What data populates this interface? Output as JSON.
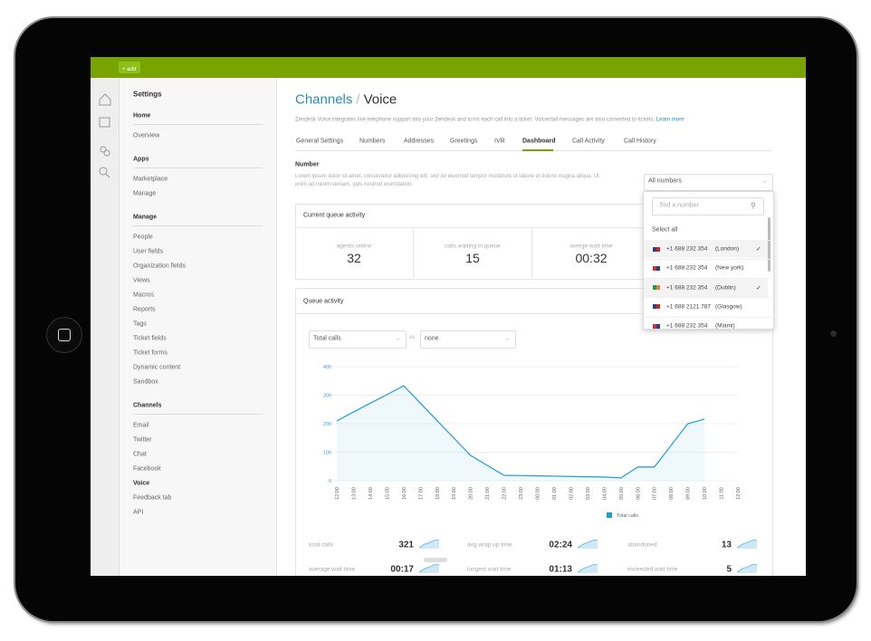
{
  "topbar": {
    "add_button": "+ add"
  },
  "sidebar": {
    "title": "Settings",
    "sections": [
      {
        "heading": "Home",
        "items": [
          "Overview"
        ]
      },
      {
        "heading": "Apps",
        "items": [
          "Marketplace",
          "Manage"
        ]
      },
      {
        "heading": "Manage",
        "items": [
          "People",
          "User fields",
          "Organization fields",
          "Views",
          "Macros",
          "Reports",
          "Tags",
          "Ticket fields",
          "Ticket forms",
          "Dynamic content",
          "Sandbox"
        ]
      },
      {
        "heading": "Channels",
        "items": [
          "Email",
          "Twitter",
          "Chat",
          "Facebook",
          "Voice",
          "Feedback tab",
          "API"
        ]
      }
    ]
  },
  "page": {
    "title": "Channels",
    "separator": "/",
    "subtitle": "Voice",
    "description": "Zendesk Voice integrates live telephone support into your Zendesk and turns each call into a ticket. Voicemail messages are also converted to tickets.",
    "learn_more": "Learn more",
    "tabs": [
      "General Settings",
      "Numbers",
      "Addresses",
      "Greetings",
      "IVR",
      "Dashboard",
      "Call Activity",
      "Call History"
    ]
  },
  "number_section": {
    "heading": "Number",
    "text": "Lorem ipsum dolor sit amet, consectetur adipisicing elit, sed do eiusmod tempor incididunt ut labore et dolore magna aliqua. Ut enim ad minim veniam, quis nostrud exercitation."
  },
  "dropdown": {
    "selected": "All numbers",
    "search_placeholder": "find a number",
    "select_all": "Select all",
    "options": [
      {
        "number": "+1 688 232 354",
        "city": "(London)",
        "checked": true
      },
      {
        "number": "+1 688 232 354",
        "city": "(New york)",
        "checked": false
      },
      {
        "number": "+1 688 232 354",
        "city": "(Dublin)",
        "checked": true
      },
      {
        "number": "+1 688 2121 787",
        "city": "(Glasgow)",
        "checked": false
      },
      {
        "number": "+1 688 232 354",
        "city": "(Miami)",
        "checked": false
      }
    ]
  },
  "current_queue": {
    "title": "Current queue activity",
    "stats": [
      {
        "label": "agents online",
        "value": 32
      },
      {
        "label": "calls waiting in queue",
        "value": 15
      },
      {
        "label": "averge wait time",
        "value": "00:32"
      }
    ]
  },
  "queue_activity": {
    "title": "Queue activity",
    "metric_select": "Total calls",
    "vs": "vs",
    "compare_select": "none"
  },
  "chart_data": {
    "type": "line",
    "categories": [
      "12:00",
      "13:00",
      "14:00",
      "15:00",
      "16:00",
      "17:00",
      "18:00",
      "19:00",
      "20:00",
      "21:00",
      "22:00",
      "23:00",
      "00:00",
      "01:00",
      "02:00",
      "03:00",
      "04:00",
      "05:00",
      "06:00",
      "07:00",
      "08:00",
      "09:00",
      "10:00",
      "11:00",
      "12:00"
    ],
    "series": [
      {
        "name": "Total calls",
        "color": "#1e9bd7",
        "values": [
          210,
          241,
          272,
          302,
          333,
          272,
          211,
          150,
          89,
          54,
          19,
          18,
          17,
          16,
          15,
          14,
          13,
          10,
          48,
          48,
          124,
          200,
          216,
          null,
          null
        ]
      }
    ],
    "ylim": [
      0,
      400
    ],
    "yticks": [
      0,
      100,
      200,
      300,
      400
    ],
    "grid": true
  },
  "summary": [
    {
      "label": "total calls",
      "value": 321
    },
    {
      "label": "avg wrap up time",
      "value": "02:24"
    },
    {
      "label": "abandoned",
      "value": 13
    },
    {
      "label": "average wait time",
      "value": "00:17"
    },
    {
      "label": "longest wait time",
      "value": "01:13"
    },
    {
      "label": "exceeded wait time",
      "value": 5
    }
  ]
}
